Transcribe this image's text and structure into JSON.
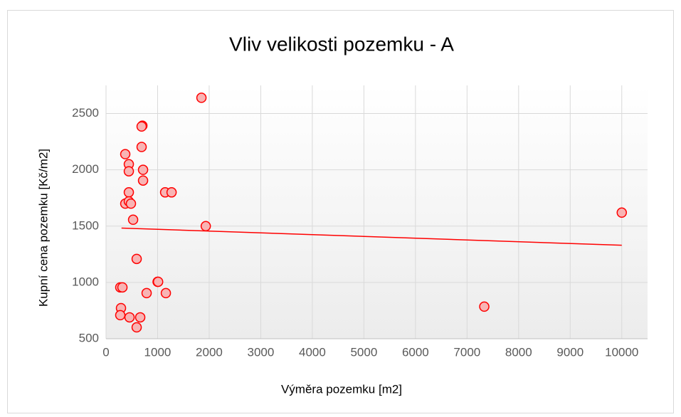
{
  "chart_data": {
    "type": "scatter",
    "title": "Vliv velikosti pozemku - A",
    "xlabel": "Výměra pozemku [m2]",
    "ylabel": "Kupní cena pozemku [Kč/m2]",
    "series": [
      {
        "color": "#ff0000",
        "fill": "#f8b4b4",
        "x": [
          1850,
          705,
          690,
          690,
          373,
          442,
          442,
          718,
          718,
          442,
          1146,
          1271,
          373,
          442,
          483,
          525,
          1934,
          594,
          1000,
          1010,
          787,
          1160,
          276,
          318,
          290,
          276,
          456,
          663,
          594,
          7334,
          10000
        ],
        "values": [
          2640,
          2392,
          2385,
          2203,
          2139,
          2050,
          1987,
          2000,
          1905,
          1800,
          1800,
          1800,
          1700,
          1720,
          1700,
          1557,
          1500,
          1209,
          1006,
          1006,
          905,
          905,
          956,
          956,
          772,
          709,
          690,
          690,
          601,
          785,
          1620
        ]
      }
    ],
    "trendline": {
      "x": [
        300,
        10000
      ],
      "values": [
        1483,
        1330
      ],
      "color": "#ff0000"
    },
    "xlim": [
      0,
      10500
    ],
    "xticks": [
      0,
      1000,
      2000,
      3000,
      4000,
      5000,
      6000,
      7000,
      8000,
      9000,
      10000
    ],
    "ylim": [
      500,
      2750
    ],
    "yticks": [
      500,
      1000,
      1500,
      2000,
      2500
    ],
    "grid": true
  }
}
